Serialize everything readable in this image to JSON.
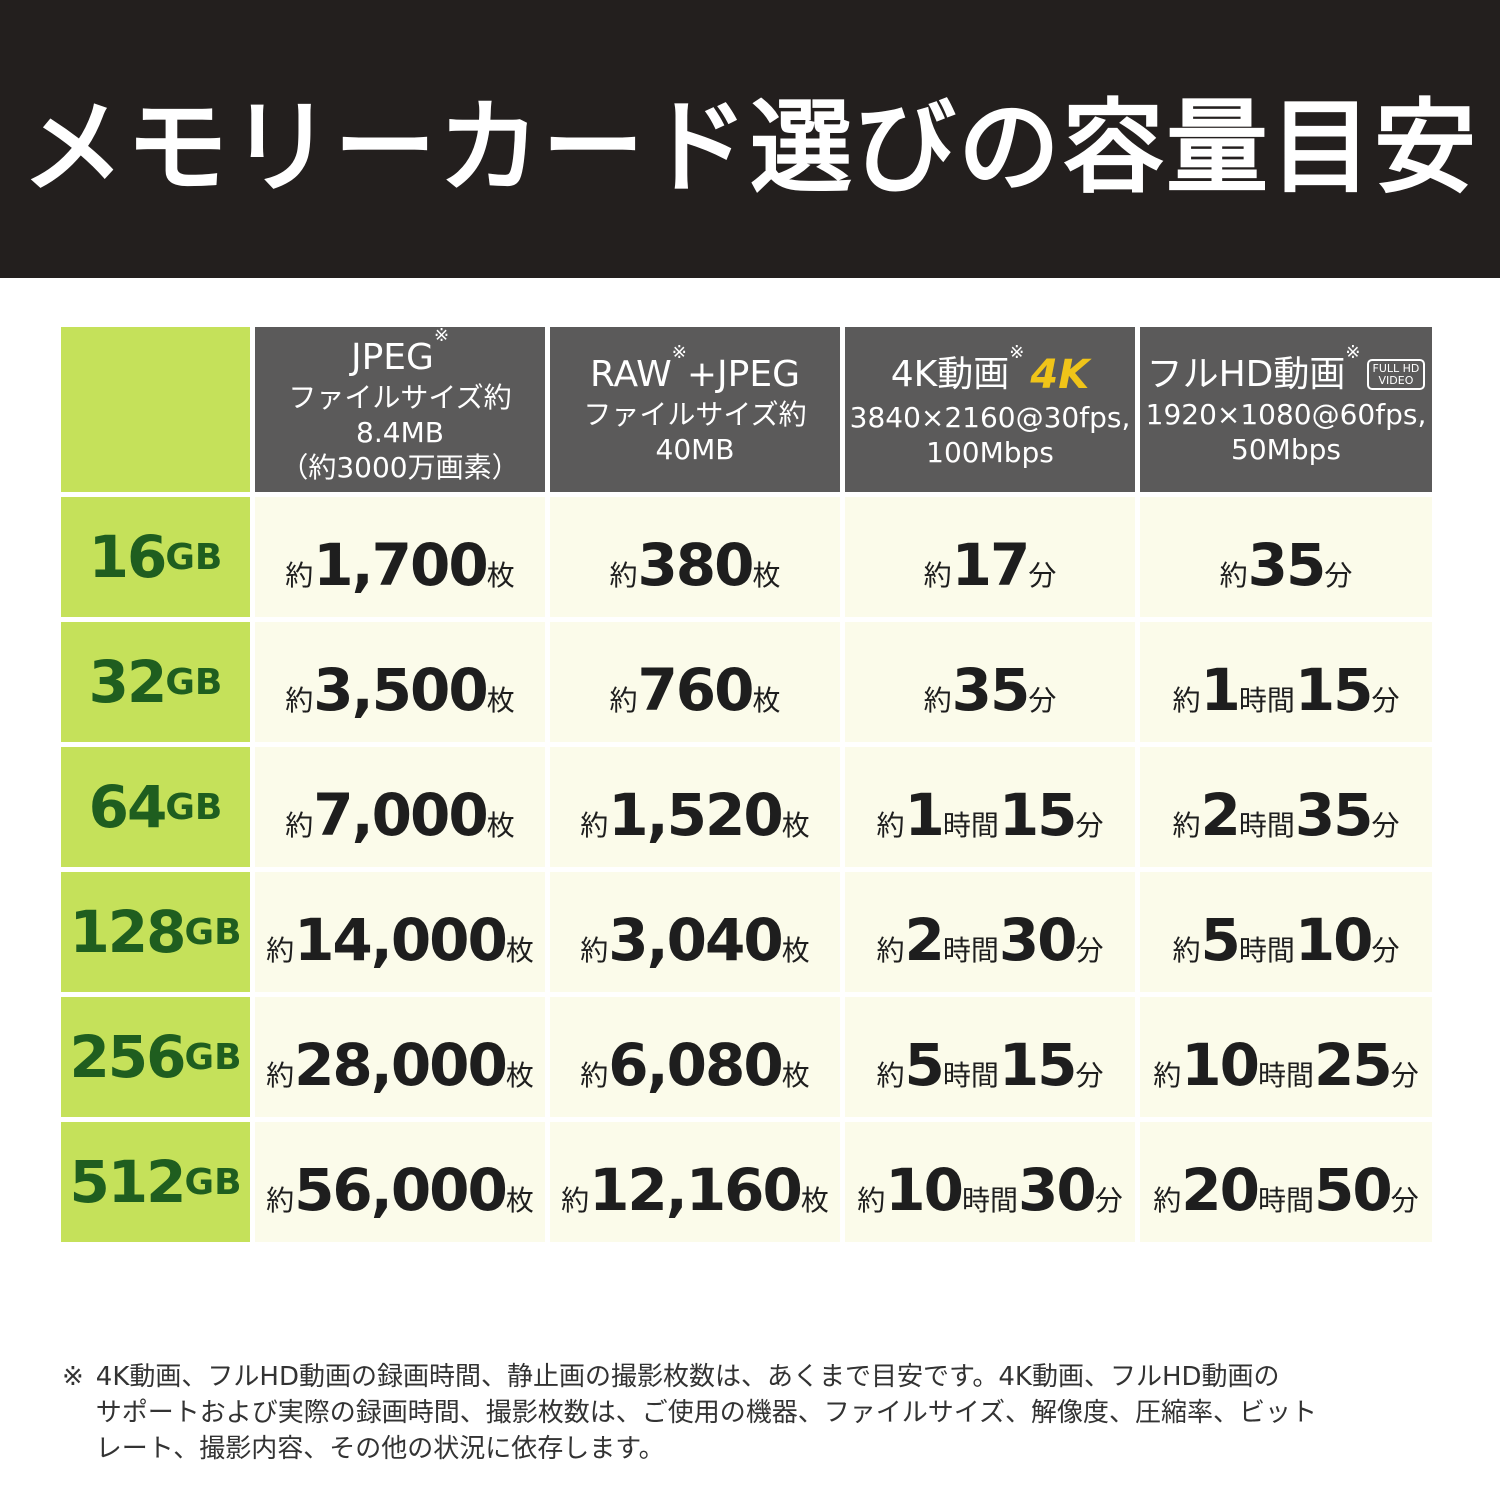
{
  "header": {
    "title": "メモリーカード選びの容量目安"
  },
  "table": {
    "columns": [
      {
        "title": [
          "JPEG",
          "※"
        ],
        "lines": [
          "ファイルサイズ約8.4MB",
          "（約3000万画素）"
        ]
      },
      {
        "title": [
          "RAW",
          "※",
          "+JPEG"
        ],
        "lines": [
          "ファイルサイズ約40MB"
        ]
      },
      {
        "title": [
          "4K動画",
          "※"
        ],
        "badge": "4K",
        "lines": [
          "3840×2160@30fps,",
          "100Mbps"
        ]
      },
      {
        "title": [
          "フルHD動画",
          "※"
        ],
        "badge_box": [
          "FULL HD",
          "VIDEO"
        ],
        "lines": [
          "1920×1080@60fps,",
          "50Mbps"
        ]
      }
    ],
    "rows": [
      {
        "capacity": [
          "16",
          "GB"
        ],
        "cells": [
          [
            "約",
            "1,700",
            "枚"
          ],
          [
            "約",
            "380",
            "枚"
          ],
          [
            "約",
            "17",
            "分"
          ],
          [
            "約",
            "35",
            "分"
          ]
        ]
      },
      {
        "capacity": [
          "32",
          "GB"
        ],
        "cells": [
          [
            "約",
            "3,500",
            "枚"
          ],
          [
            "約",
            "760",
            "枚"
          ],
          [
            "約",
            "35",
            "分"
          ],
          [
            "約",
            "1",
            "時間",
            "15",
            "分"
          ]
        ]
      },
      {
        "capacity": [
          "64",
          "GB"
        ],
        "cells": [
          [
            "約",
            "7,000",
            "枚"
          ],
          [
            "約",
            "1,520",
            "枚"
          ],
          [
            "約",
            "1",
            "時間",
            "15",
            "分"
          ],
          [
            "約",
            "2",
            "時間",
            "35",
            "分"
          ]
        ]
      },
      {
        "capacity": [
          "128",
          "GB"
        ],
        "cells": [
          [
            "約",
            "14,000",
            "枚"
          ],
          [
            "約",
            "3,040",
            "枚"
          ],
          [
            "約",
            "2",
            "時間",
            "30",
            "分"
          ],
          [
            "約",
            "5",
            "時間",
            "10",
            "分"
          ]
        ]
      },
      {
        "capacity": [
          "256",
          "GB"
        ],
        "cells": [
          [
            "約",
            "28,000",
            "枚"
          ],
          [
            "約",
            "6,080",
            "枚"
          ],
          [
            "約",
            "5",
            "時間",
            "15",
            "分"
          ],
          [
            "約",
            "10",
            "時間",
            "25",
            "分"
          ]
        ]
      },
      {
        "capacity": [
          "512",
          "GB"
        ],
        "cells": [
          [
            "約",
            "56,000",
            "枚"
          ],
          [
            "約",
            "12,160",
            "枚"
          ],
          [
            "約",
            "10",
            "時間",
            "30",
            "分"
          ],
          [
            "約",
            "20",
            "時間",
            "50",
            "分"
          ]
        ]
      }
    ]
  },
  "footnote": {
    "mark": "※",
    "lines": [
      "4K動画、フルHD動画の録画時間、静止画の撮影枚数は、あくまで目安です。4K動画、フルHD動画の",
      "サポートおよび実際の録画時間、撮影枚数は、ご使用の機器、ファイルサイズ、解像度、圧縮率、ビット",
      "レート、撮影内容、その他の状況に依存します。"
    ]
  }
}
